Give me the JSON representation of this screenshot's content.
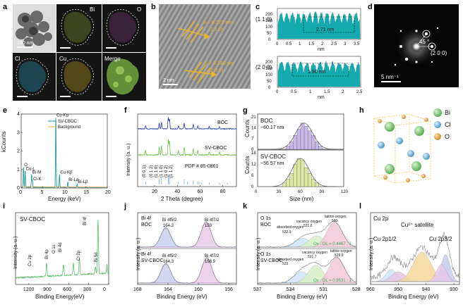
{
  "figure": {
    "panel_letters": [
      "a",
      "b",
      "c",
      "d",
      "e",
      "f",
      "g",
      "h",
      "i",
      "j",
      "k",
      "l"
    ],
    "colors": {
      "teal": "#13aab0",
      "bi": "#7ec87e",
      "cl": "#5ba9d6",
      "o": "#e0a040",
      "gold": "#e8b428",
      "boc_blue": "#2637a8",
      "cboc_green": "#6cc24a",
      "lavender": "#c7b8e8",
      "lime": "#dde8a0"
    }
  },
  "panel_a": {
    "images": [
      "",
      "Bi",
      "O",
      "Cl",
      "Cu",
      "Merge"
    ],
    "scale_bar": "100 nm"
  },
  "panel_b": {
    "d1": "d = 0.272 nm",
    "d1_plane": "(1 1 0)",
    "d2": "d = 0.190 nm",
    "d2_plane": "(2 0 0)",
    "scale_bar": "2 nm"
  },
  "panel_c": {
    "top_label": "(1 1 0)",
    "bottom_label": "(2 0 0)",
    "top_measure": "2.71 nm",
    "bottom_measure": "1.90 nm",
    "xlabel": "nm",
    "top_xticks": [
      "0",
      "0.5",
      "1",
      "1.5",
      "2",
      "2.5",
      "3",
      "3.5"
    ],
    "bottom_xticks": [
      "0",
      "0.5",
      "1",
      "1.5",
      "2",
      "2.5"
    ],
    "top_yticks": [
      "0",
      "50",
      "100",
      "150",
      "200"
    ],
    "bottom_yticks": [
      "0",
      "50",
      "100",
      "150",
      "200"
    ]
  },
  "panel_d": {
    "angle": "45 °",
    "plane": "(2 0 0)",
    "scale_bar": "5 nm⁻¹"
  },
  "chart_data": [
    {
      "id": "e",
      "type": "line",
      "title": "",
      "xlabel": "Energy (keV)",
      "ylabel": "kCounts",
      "xlim": [
        0,
        20
      ],
      "ylim": [
        0,
        4
      ],
      "xticks": [
        "0",
        "5",
        "10",
        "15",
        "20"
      ],
      "yticks": [
        "0",
        "1",
        "2",
        "3",
        "4"
      ],
      "legend": [
        "SV-CBOC",
        "Background"
      ],
      "peaks": [
        {
          "label": "O",
          "x": 0.53,
          "y": 1.1
        },
        {
          "label": "Cu-L",
          "x": 0.93,
          "y": 0.9
        },
        {
          "label": "Bi-M",
          "x": 2.42,
          "y": 0.7
        },
        {
          "label": "Cl-K",
          "x": 2.62,
          "y": 0.35
        },
        {
          "label": "Cu-Kα",
          "x": 8.05,
          "y": 3.8
        },
        {
          "label": "Cu-Kβ",
          "x": 8.9,
          "y": 0.7
        },
        {
          "label": "Bi-Lα",
          "x": 10.84,
          "y": 0.3
        },
        {
          "label": "Bi-Lβ",
          "x": 13.0,
          "y": 0.2
        }
      ]
    },
    {
      "id": "f",
      "type": "line",
      "xlabel": "2 Theta (degree)",
      "ylabel": "Intensity (a. u.)",
      "xlim": [
        5,
        92
      ],
      "xticks": [
        "20",
        "40",
        "60",
        "80"
      ],
      "series": [
        {
          "name": "BOC"
        },
        {
          "name": "SV-CBOC"
        }
      ],
      "reference": "PDF # 85-0861",
      "planes": [
        "(0 0 1)",
        "(0 1 2)",
        "(1 1 0)",
        "(1 1 0)",
        "(1 0 2)",
        "(1 1 2)"
      ]
    },
    {
      "id": "g",
      "type": "bar",
      "xlabel": "Size (nm)",
      "ylabel": "Counts",
      "xlim": [
        0,
        120
      ],
      "xticks": [
        "0",
        "30",
        "60",
        "90",
        "120"
      ],
      "series": [
        {
          "name": "BOC",
          "note": "~60.17 nm",
          "yticks": [
            "0",
            "7",
            "14",
            "21"
          ],
          "ymax": 21,
          "bins": [
            40,
            45,
            50,
            55,
            60,
            65,
            70,
            75,
            80,
            85
          ],
          "values": [
            2,
            5,
            9,
            13,
            17,
            15,
            12,
            9,
            5,
            2
          ]
        },
        {
          "name": "SV-CBOC",
          "note": "~56.57 nm",
          "yticks": [
            "0",
            "6",
            "12",
            "18"
          ],
          "ymax": 18,
          "bins": [
            35,
            40,
            45,
            50,
            55,
            60,
            65,
            70,
            75,
            80
          ],
          "values": [
            2,
            4,
            7,
            12,
            15,
            14,
            10,
            7,
            4,
            2
          ]
        }
      ]
    },
    {
      "id": "i",
      "type": "line",
      "title": "SV-CBOC",
      "xlabel": "Binding Energy(eV)",
      "ylabel": "Intensity (a. u.)",
      "xlim": [
        1400,
        0
      ],
      "xticks": [
        "1200",
        "900",
        "600",
        "300",
        "0"
      ],
      "peak_labels": [
        "Cu 2p",
        "Bi 4p",
        "O 1s",
        "Bi 4d",
        "Cl 2p",
        "Bi 4f",
        "Bi 5d"
      ]
    },
    {
      "id": "j",
      "type": "line",
      "xlabel": "Binding Energy (eV)",
      "ylabel": "Intensity (a. u.)",
      "xlim": [
        168,
        155
      ],
      "xticks": [
        "168",
        "164",
        "160",
        "156"
      ],
      "series": [
        {
          "name": "BOC",
          "element": "Bi 4f",
          "peaks": [
            {
              "label": "Bi 4f5/2",
              "x": 164.3
            },
            {
              "label": "Bi 4f7/2",
              "x": 159.0
            }
          ]
        },
        {
          "name": "SV-CBOC",
          "element": "Bi 4f",
          "peaks": [
            {
              "label": "Bi 4f5/2",
              "x": 164.3
            },
            {
              "label": "Bi 4f7/2",
              "x": 158.9
            }
          ]
        }
      ]
    },
    {
      "id": "k",
      "type": "line",
      "xlabel": "Binding Energy (eV)",
      "ylabel": "Intensity (a. u.)",
      "xlim": [
        537,
        528
      ],
      "xticks": [
        "537",
        "534",
        "531",
        "528"
      ],
      "series": [
        {
          "name": "BOC",
          "element": "O 1s",
          "ratio": "Ov : OL = 0.4467 : 1",
          "peaks": [
            {
              "label": "absorbed oxygen",
              "x": 532.9
            },
            {
              "label": "vacancy oxygen",
              "x": 531.6
            },
            {
              "label": "lattice oxygen",
              "x": 530
            }
          ]
        },
        {
          "name": "SV-CBOC",
          "element": "O 1s",
          "ratio": "Ov : OL = 0.9531 : 1",
          "peaks": [
            {
              "label": "absorbed oxygen",
              "x": 533.0
            },
            {
              "label": "vacancy oxygen",
              "x": 531.7
            },
            {
              "label": "lattice oxygen",
              "x": 529.8
            }
          ]
        }
      ]
    },
    {
      "id": "l",
      "type": "line",
      "title": "Cu 2p",
      "xlabel": "Binding Energy (eV)",
      "ylabel": "Intensity (a. u.)",
      "xlim": [
        960,
        928
      ],
      "xticks": [
        "960",
        "950",
        "940",
        "930"
      ],
      "peaks": [
        {
          "label": "Cu 2p1/2",
          "x": 952
        },
        {
          "label": "Cu²⁺ satellite",
          "x": 941
        },
        {
          "label": "Cu 2p3/2",
          "x": 932.5
        }
      ]
    }
  ],
  "panel_h": {
    "legend": [
      "Bi",
      "Cl",
      "O"
    ]
  }
}
